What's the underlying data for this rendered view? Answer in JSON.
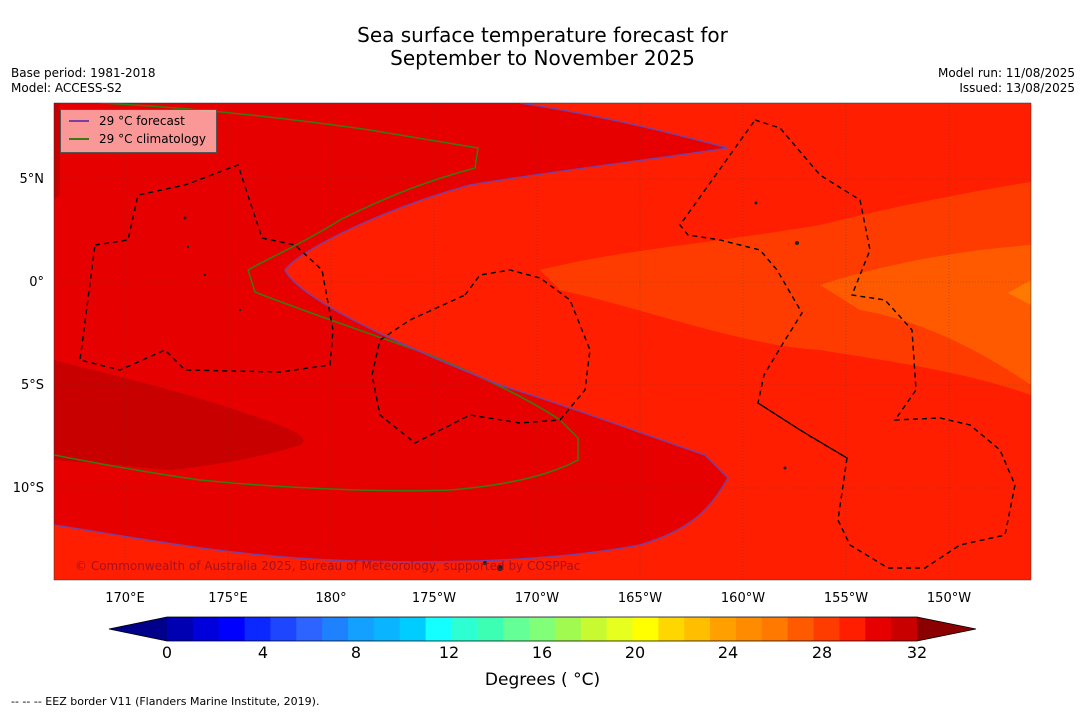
{
  "title_line1": "Sea surface temperature forecast for",
  "title_line2": "September to November 2025",
  "base_period": "Base period: 1981-2018",
  "model": "Model: ACCESS-S2",
  "model_run": "Model run: 11/08/2025",
  "issued": "Issued: 13/08/2025",
  "legend": {
    "forecast_label": "29 °C  forecast",
    "forecast_color": "#7b3fa0",
    "climatology_label": "29 °C  climatology",
    "climatology_color": "#3a7a10"
  },
  "copyright": "© Commonwealth of Australia 2025, Bureau of Meteorology, supported by COSPPac",
  "lat_labels": [
    "5°N",
    "0°",
    "5°S",
    "10°S"
  ],
  "lon_labels": [
    "170°E",
    "175°E",
    "180°",
    "175°W",
    "170°W",
    "165°W",
    "160°W",
    "155°W",
    "150°W"
  ],
  "colorbar": {
    "ticks": [
      "0",
      "4",
      "8",
      "12",
      "16",
      "20",
      "24",
      "28",
      "32"
    ],
    "label": "Degrees ( °C)",
    "colors": [
      "#00008b",
      "#0000b3",
      "#0000dd",
      "#0000ff",
      "#0a28ff",
      "#1e46ff",
      "#2d64ff",
      "#1e82ff",
      "#14a0ff",
      "#0ab4ff",
      "#00cdff",
      "#14ffff",
      "#2dffd2",
      "#3cffb4",
      "#64ff96",
      "#82ff78",
      "#a0fa50",
      "#c8fa32",
      "#e6ff1e",
      "#ffff00",
      "#ffd700",
      "#ffbe00",
      "#ffa000",
      "#ff8c00",
      "#ff7800",
      "#ff5a00",
      "#ff3c00",
      "#ff1e00",
      "#e60000",
      "#c80000",
      "#8b0000"
    ]
  },
  "footnote": "--  --  -- EEZ border V11 (Flanders Marine Institute, 2019)."
}
